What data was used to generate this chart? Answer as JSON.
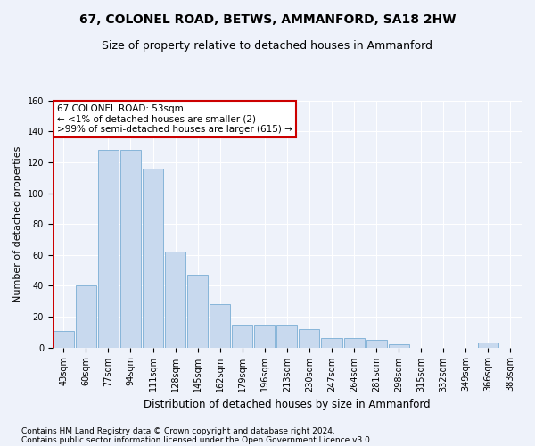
{
  "title": "67, COLONEL ROAD, BETWS, AMMANFORD, SA18 2HW",
  "subtitle": "Size of property relative to detached houses in Ammanford",
  "xlabel": "Distribution of detached houses by size in Ammanford",
  "ylabel": "Number of detached properties",
  "bar_color": "#c8d9ee",
  "bar_edge_color": "#7aadd4",
  "categories": [
    "43sqm",
    "60sqm",
    "77sqm",
    "94sqm",
    "111sqm",
    "128sqm",
    "145sqm",
    "162sqm",
    "179sqm",
    "196sqm",
    "213sqm",
    "230sqm",
    "247sqm",
    "264sqm",
    "281sqm",
    "298sqm",
    "315sqm",
    "332sqm",
    "349sqm",
    "366sqm",
    "383sqm"
  ],
  "values": [
    11,
    40,
    128,
    128,
    116,
    62,
    47,
    28,
    15,
    15,
    15,
    12,
    6,
    6,
    5,
    2,
    0,
    0,
    0,
    3,
    0
  ],
  "ylim": [
    0,
    160
  ],
  "yticks": [
    0,
    20,
    40,
    60,
    80,
    100,
    120,
    140,
    160
  ],
  "annotation_title": "67 COLONEL ROAD: 53sqm",
  "annotation_line1": "← <1% of detached houses are smaller (2)",
  "annotation_line2": ">99% of semi-detached houses are larger (615) →",
  "annotation_box_facecolor": "#ffffff",
  "annotation_box_edgecolor": "#cc0000",
  "vline_color": "#cc0000",
  "footer1": "Contains HM Land Registry data © Crown copyright and database right 2024.",
  "footer2": "Contains public sector information licensed under the Open Government Licence v3.0.",
  "bg_color": "#eef2fa",
  "grid_color": "#ffffff",
  "title_fontsize": 10,
  "subtitle_fontsize": 9,
  "ylabel_fontsize": 8,
  "xlabel_fontsize": 8.5,
  "tick_fontsize": 7,
  "annotation_fontsize": 7.5,
  "footer_fontsize": 6.5
}
